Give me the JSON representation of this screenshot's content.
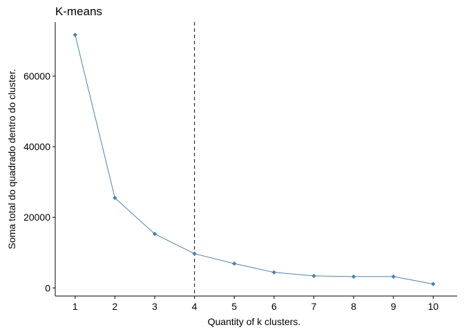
{
  "chart_data": {
    "type": "line",
    "title": "K-means",
    "xlabel": "Quantity of k clusters.",
    "ylabel": "Soma total do quadrado dentro do cluster.",
    "x": [
      1,
      2,
      3,
      4,
      5,
      6,
      7,
      8,
      9,
      10
    ],
    "x_tick_labels": [
      "1",
      "2",
      "3",
      "4",
      "5",
      "6",
      "7",
      "8",
      "9",
      "10"
    ],
    "series": [
      {
        "values": [
          71700,
          25500,
          15300,
          9700,
          6900,
          4400,
          3400,
          3200,
          3200,
          1100
        ],
        "color": "#4682B4",
        "marker": "diamond"
      }
    ],
    "y_ticks": [
      0,
      20000,
      40000,
      60000
    ],
    "y_tick_labels": [
      "0",
      "20000",
      "40000",
      "60000"
    ],
    "xlim": [
      0.5,
      10.6
    ],
    "ylim": [
      -2300,
      75300
    ],
    "reference_line": {
      "orientation": "vertical",
      "x": 4,
      "style": "dashed",
      "color": "#000000"
    },
    "grid": false,
    "legend": "none"
  }
}
